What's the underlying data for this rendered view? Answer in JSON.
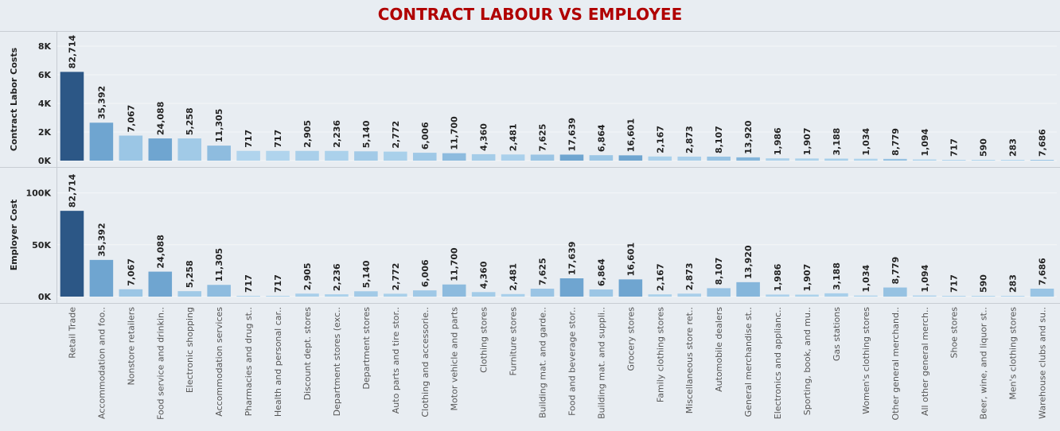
{
  "title": "CONTRACT LABOUR VS EMPLOYEE",
  "colors": {
    "title": "#b00000",
    "background": "#e8edf2",
    "bar_dark": "#2c5786",
    "bar_mid": "#6fa5d0",
    "bar_light": "#b2d6ee"
  },
  "chart_data": {
    "type": "bar",
    "title": "CONTRACT LABOUR VS EMPLOYEE",
    "categories": [
      "Retail Trade",
      "Accommodation and foo..",
      "Nonstore retailers",
      "Food service and drinkin..",
      "Electronic shopping",
      "Accommodation services",
      "Pharmacies and drug st..",
      "Health and personal car..",
      "Discount dept. stores",
      "Department stores (exc..",
      "Department stores",
      "Auto parts and tire stor..",
      "Clothing and accessorie..",
      "Motor vehicle and parts",
      "Clothing stores",
      "Furniture stores",
      "Building mat. and garde..",
      "Food and beverage stor..",
      "Building mat. and suppli..",
      "Grocery stores",
      "Family clothing stores",
      "Miscellaneous store ret..",
      "Automobile dealers",
      "General merchandise st..",
      "Electronics and applianc..",
      "Sporting, book, and mu..",
      "Gas stations",
      "Women's clothing stores",
      "Other general merchand..",
      "All other general merch..",
      "Shoe stores",
      "Beer, wine, and liquor st..",
      "Men's clothing stores",
      "Warehouse clubs and su.."
    ],
    "data_labels": [
      "82,714",
      "35,392",
      "7,067",
      "24,088",
      "5,258",
      "11,305",
      "717",
      "717",
      "2,905",
      "2,236",
      "5,140",
      "2,772",
      "6,006",
      "11,700",
      "4,360",
      "2,481",
      "7,625",
      "17,639",
      "6,864",
      "16,601",
      "2,167",
      "2,873",
      "8,107",
      "13,920",
      "1,986",
      "1,907",
      "3,188",
      "1,034",
      "8,779",
      "1,094",
      "717",
      "590",
      "283",
      "7,686"
    ],
    "color_values": [
      82714,
      35392,
      7067,
      24088,
      5258,
      11305,
      717,
      717,
      2905,
      2236,
      5140,
      2772,
      6006,
      11700,
      4360,
      2481,
      7625,
      17639,
      6864,
      16601,
      2167,
      2873,
      8107,
      13920,
      1986,
      1907,
      3188,
      1034,
      8779,
      1094,
      717,
      590,
      283,
      7686
    ],
    "panels": [
      {
        "ylabel": "Contract Labor Costs",
        "ylim": [
          0,
          9000
        ],
        "ticks": [
          0,
          2000,
          4000,
          6000,
          8000
        ],
        "tick_labels": [
          "0K",
          "2K",
          "4K",
          "6K",
          "8K"
        ],
        "values": [
          6200,
          2650,
          1750,
          1550,
          1550,
          1050,
          680,
          680,
          680,
          680,
          650,
          630,
          550,
          520,
          450,
          430,
          420,
          420,
          380,
          370,
          290,
          280,
          280,
          230,
          160,
          150,
          140,
          130,
          120,
          80,
          30,
          20,
          10,
          5
        ]
      },
      {
        "ylabel": "Employer Cost",
        "ylim": [
          0,
          125000
        ],
        "ticks": [
          0,
          50000,
          100000
        ],
        "tick_labels": [
          "0K",
          "50K",
          "100K"
        ],
        "values": [
          82714,
          35392,
          7067,
          24088,
          5258,
          11305,
          717,
          717,
          2905,
          2236,
          5140,
          2772,
          6006,
          11700,
          4360,
          2481,
          7625,
          17639,
          6864,
          16601,
          2167,
          2873,
          8107,
          13920,
          1986,
          1907,
          3188,
          1034,
          8779,
          1094,
          717,
          590,
          283,
          7686
        ]
      }
    ],
    "grid": true,
    "legend": "none"
  }
}
